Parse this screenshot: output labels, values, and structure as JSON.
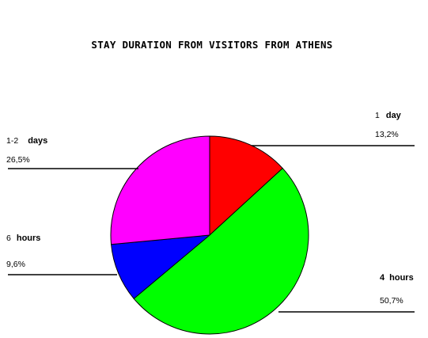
{
  "chart_data": {
    "type": "pie",
    "title": "STAY DURATION FROM VISITORS FROM ATHENS",
    "start_angle_deg": 0,
    "direction": "clockwise",
    "slices": [
      {
        "num": "1",
        "unit": "day",
        "value_label": "13,2%",
        "value": 13.2,
        "color": "#ff0000"
      },
      {
        "num": "4",
        "unit": "hours",
        "value_label": "50,7%",
        "value": 50.7,
        "color": "#00ff00"
      },
      {
        "num": "6",
        "unit": "hours",
        "value_label": "9,6%",
        "value": 9.6,
        "color": "#0000ff"
      },
      {
        "num": "1-2",
        "unit": "days",
        "value_label": "26,5%",
        "value": 26.5,
        "color": "#ff00ff"
      }
    ]
  }
}
